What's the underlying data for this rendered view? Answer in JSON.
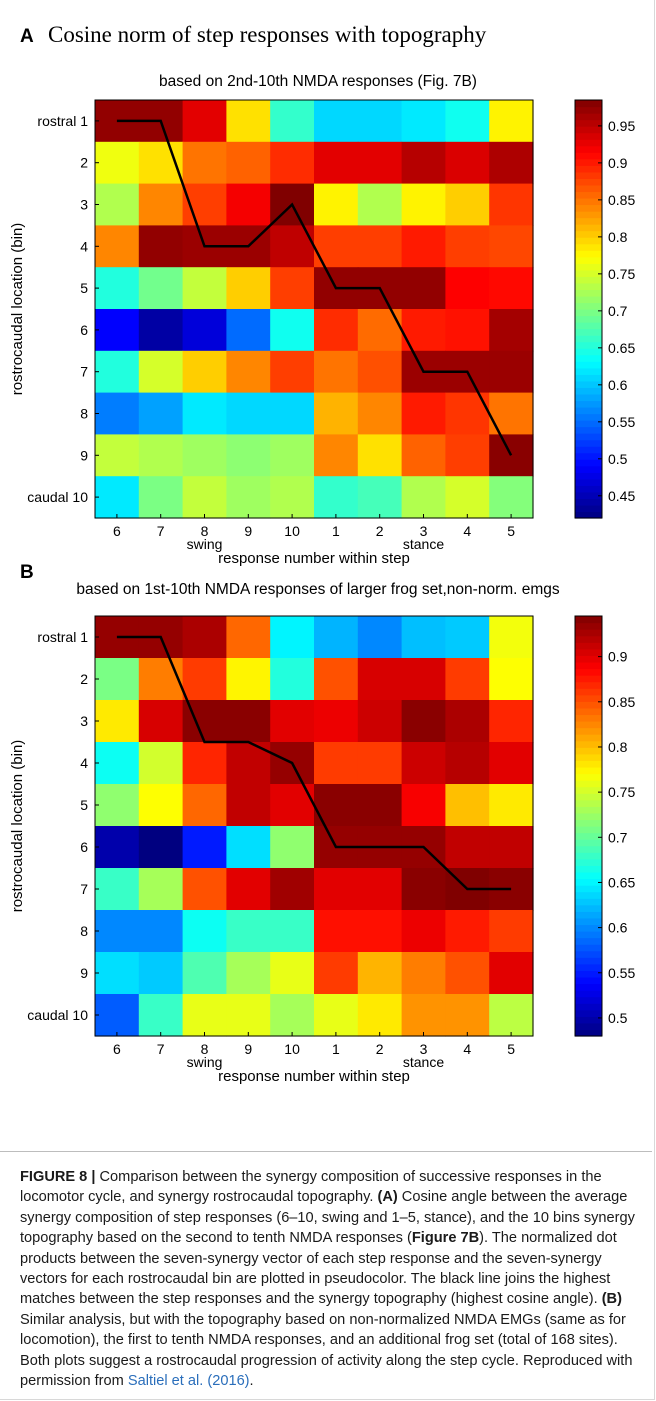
{
  "panel_a": {
    "letter": "A",
    "title": "Cosine norm of step responses with topography"
  },
  "panel_b": {
    "letter": "B"
  },
  "caption": {
    "label": "FIGURE 8 |",
    "intro": " Comparison between the synergy composition of successive responses in the locomotor cycle, and synergy rostrocaudal topography. ",
    "a_label": "(A)",
    "a_text_1": " Cosine angle between the average synergy composition of step responses (6–10, swing and 1–5, stance), and the 10 bins synergy topography based on the second to tenth NMDA responses (",
    "a_fig_ref": "Figure 7B",
    "a_text_2": "). The normalized dot products between the seven-synergy vector of each step response and the seven-synergy vectors for each rostrocaudal bin are plotted in pseudocolor. The black line joins the highest matches between the step responses and the synergy topography (highest cosine angle). ",
    "b_label": "(B)",
    "b_text": " Similar analysis, but with the topography based on non-normalized NMDA EMGs (same as for locomotion), the first to tenth NMDA responses, and an additional frog set (total of 168 sites). Both plots suggest a rostrocaudal progression of activity along the step cycle. Reproduced with permission from ",
    "citation": "Saltiel et al. (2016)",
    "end": "."
  },
  "colormap": "jet",
  "chart_data": [
    {
      "type": "heatmap",
      "title": "based on 2nd-10th NMDA responses (Fig. 7B)",
      "xlabel": "response number within step",
      "ylabel": "rostrocaudal location (bin)",
      "x_ticks": [
        "6",
        "7",
        "8",
        "9",
        "10",
        "1",
        "2",
        "3",
        "4",
        "5"
      ],
      "x_phase_labels": [
        {
          "text": "swing",
          "under": "8"
        },
        {
          "text": "stance",
          "under": "3"
        }
      ],
      "y_ticks": [
        "rostral 1",
        "2",
        "3",
        "4",
        "5",
        "6",
        "7",
        "8",
        "9",
        "caudal 10"
      ],
      "clim": [
        0.42,
        0.985
      ],
      "colorbar_ticks": [
        0.45,
        0.5,
        0.55,
        0.6,
        0.65,
        0.7,
        0.75,
        0.8,
        0.85,
        0.9,
        0.95
      ],
      "values": [
        [
          0.975,
          0.975,
          0.93,
          0.79,
          0.66,
          0.61,
          0.61,
          0.62,
          0.64,
          0.78
        ],
        [
          0.765,
          0.79,
          0.85,
          0.86,
          0.89,
          0.93,
          0.93,
          0.955,
          0.935,
          0.96
        ],
        [
          0.73,
          0.84,
          0.88,
          0.92,
          0.985,
          0.78,
          0.73,
          0.78,
          0.8,
          0.885
        ],
        [
          0.84,
          0.975,
          0.97,
          0.97,
          0.95,
          0.88,
          0.88,
          0.9,
          0.88,
          0.875
        ],
        [
          0.65,
          0.695,
          0.74,
          0.8,
          0.88,
          0.975,
          0.975,
          0.975,
          0.915,
          0.91
        ],
        [
          0.49,
          0.44,
          0.47,
          0.55,
          0.64,
          0.89,
          0.855,
          0.9,
          0.905,
          0.965
        ],
        [
          0.65,
          0.75,
          0.8,
          0.84,
          0.88,
          0.85,
          0.87,
          0.97,
          0.97,
          0.97
        ],
        [
          0.56,
          0.58,
          0.62,
          0.61,
          0.61,
          0.815,
          0.84,
          0.9,
          0.885,
          0.85
        ],
        [
          0.74,
          0.73,
          0.72,
          0.71,
          0.72,
          0.84,
          0.79,
          0.86,
          0.88,
          0.98
        ],
        [
          0.62,
          0.7,
          0.74,
          0.72,
          0.73,
          0.66,
          0.67,
          0.73,
          0.75,
          0.705
        ]
      ],
      "line_path": [
        [
          6,
          1
        ],
        [
          7,
          1
        ],
        [
          8,
          4
        ],
        [
          9,
          4
        ],
        [
          10,
          3
        ],
        [
          1,
          5
        ],
        [
          2,
          5
        ],
        [
          3,
          7
        ],
        [
          4,
          7
        ],
        [
          5,
          9
        ]
      ]
    },
    {
      "type": "heatmap",
      "title": "based on 1st-10th NMDA responses of larger frog set,non-norm. emgs",
      "xlabel": "response number within step",
      "ylabel": "rostrocaudal location (bin)",
      "x_ticks": [
        "6",
        "7",
        "8",
        "9",
        "10",
        "1",
        "2",
        "3",
        "4",
        "5"
      ],
      "x_phase_labels": [
        {
          "text": "swing",
          "under": "8"
        },
        {
          "text": "stance",
          "under": "3"
        }
      ],
      "y_ticks": [
        "rostral 1",
        "2",
        "3",
        "4",
        "5",
        "6",
        "7",
        "8",
        "9",
        "caudal 10"
      ],
      "clim": [
        0.48,
        0.945
      ],
      "colorbar_ticks": [
        0.5,
        0.55,
        0.6,
        0.65,
        0.7,
        0.75,
        0.8,
        0.85,
        0.9
      ],
      "values": [
        [
          0.935,
          0.935,
          0.925,
          0.84,
          0.65,
          0.62,
          0.6,
          0.625,
          0.63,
          0.765
        ],
        [
          0.71,
          0.83,
          0.86,
          0.775,
          0.67,
          0.85,
          0.905,
          0.905,
          0.86,
          0.77
        ],
        [
          0.78,
          0.905,
          0.94,
          0.94,
          0.9,
          0.895,
          0.91,
          0.94,
          0.925,
          0.87
        ],
        [
          0.66,
          0.75,
          0.87,
          0.915,
          0.935,
          0.86,
          0.86,
          0.91,
          0.92,
          0.9
        ],
        [
          0.72,
          0.77,
          0.84,
          0.915,
          0.9,
          0.94,
          0.94,
          0.89,
          0.8,
          0.78
        ],
        [
          0.5,
          0.48,
          0.55,
          0.64,
          0.72,
          0.935,
          0.935,
          0.935,
          0.915,
          0.915
        ],
        [
          0.68,
          0.73,
          0.85,
          0.9,
          0.93,
          0.9,
          0.9,
          0.94,
          0.945,
          0.94
        ],
        [
          0.6,
          0.6,
          0.66,
          0.68,
          0.68,
          0.88,
          0.88,
          0.895,
          0.875,
          0.86
        ],
        [
          0.64,
          0.63,
          0.69,
          0.73,
          0.76,
          0.86,
          0.805,
          0.83,
          0.85,
          0.9
        ],
        [
          0.58,
          0.68,
          0.76,
          0.76,
          0.73,
          0.76,
          0.78,
          0.82,
          0.82,
          0.74
        ]
      ],
      "line_path": [
        [
          6,
          1
        ],
        [
          7,
          1
        ],
        [
          8,
          3.5
        ],
        [
          9,
          3.5
        ],
        [
          10,
          4
        ],
        [
          1,
          6
        ],
        [
          2,
          6
        ],
        [
          3,
          6
        ],
        [
          4,
          7
        ],
        [
          5,
          7
        ]
      ]
    }
  ]
}
